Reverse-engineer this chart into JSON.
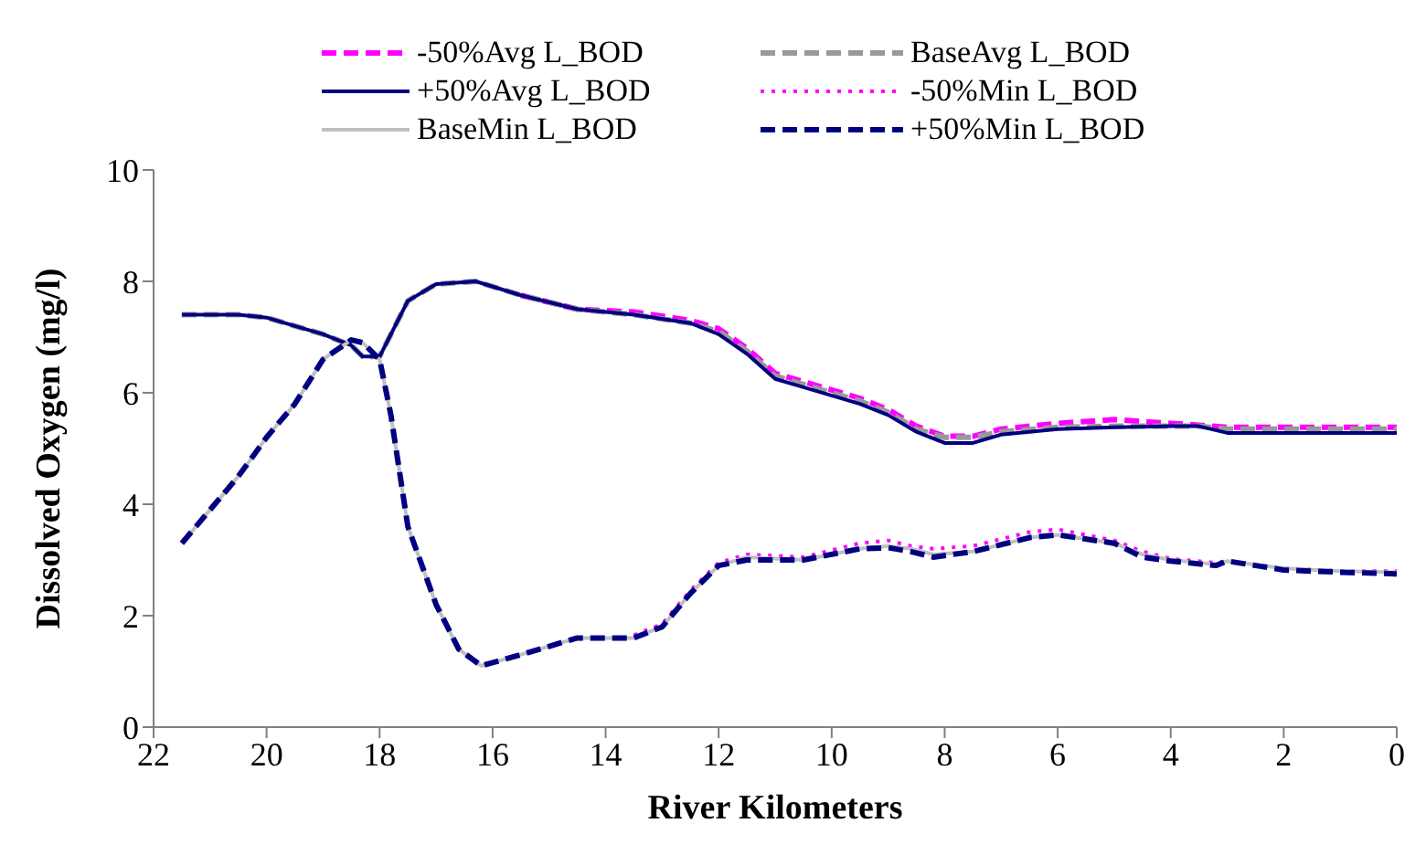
{
  "chart_data": {
    "type": "line",
    "xlabel": "River Kilometers",
    "ylabel": "Dissolved Oxygen (mg/l)",
    "xlim": [
      22,
      0
    ],
    "xticks": [
      22,
      20,
      18,
      16,
      14,
      12,
      10,
      8,
      6,
      4,
      2,
      0
    ],
    "ylim": [
      0,
      10
    ],
    "yticks": [
      0,
      2,
      4,
      6,
      8,
      10
    ],
    "grid": false,
    "legend": "top",
    "marker": "none",
    "series": [
      {
        "name": "-50%Avg L_BOD",
        "color": "#ff00ff",
        "line_style": "dashed",
        "x": [
          15.5,
          14.5,
          13.5,
          12.5,
          12,
          11.5,
          11,
          10.5,
          9.5,
          9,
          8.5,
          8,
          7.5,
          7,
          6,
          5,
          4,
          3.5,
          3,
          2,
          1,
          0
        ],
        "values": [
          7.75,
          7.5,
          7.45,
          7.3,
          7.15,
          6.8,
          6.35,
          6.2,
          5.9,
          5.7,
          5.4,
          5.22,
          5.22,
          5.35,
          5.45,
          5.52,
          5.45,
          5.42,
          5.38,
          5.38,
          5.38,
          5.38
        ]
      },
      {
        "name": "BaseAvg L_BOD",
        "color": "#999999",
        "line_style": "dashed",
        "x": [
          21.5,
          20.5,
          20,
          19.5,
          19,
          18.5,
          18.3,
          18,
          17.5,
          17,
          16.3,
          15.5,
          14.5,
          13.5,
          12.5,
          12,
          11.5,
          11,
          10.5,
          9.5,
          9,
          8.5,
          8,
          7.5,
          7,
          6,
          5,
          4,
          3.5,
          3,
          2,
          1,
          0
        ],
        "values": [
          7.4,
          7.4,
          7.35,
          7.2,
          7.05,
          6.85,
          6.65,
          6.65,
          7.65,
          7.95,
          8.0,
          7.75,
          7.5,
          7.4,
          7.25,
          7.1,
          6.75,
          6.3,
          6.15,
          5.85,
          5.65,
          5.35,
          5.2,
          5.2,
          5.3,
          5.38,
          5.4,
          5.4,
          5.4,
          5.35,
          5.35,
          5.35,
          5.35
        ]
      },
      {
        "name": "+50%Avg L_BOD",
        "color": "#000080",
        "line_style": "solid",
        "x": [
          21.5,
          20.5,
          20,
          19.5,
          19,
          18.5,
          18.3,
          18,
          17.5,
          17,
          16.3,
          15.5,
          14.5,
          13.5,
          12.5,
          12,
          11.5,
          11,
          10.5,
          9.5,
          9,
          8.5,
          8,
          7.5,
          7,
          6,
          5,
          4,
          3.5,
          3,
          2,
          1,
          0
        ],
        "values": [
          7.4,
          7.4,
          7.35,
          7.2,
          7.05,
          6.85,
          6.65,
          6.65,
          7.65,
          7.95,
          8.0,
          7.75,
          7.5,
          7.4,
          7.25,
          7.05,
          6.7,
          6.25,
          6.1,
          5.8,
          5.6,
          5.3,
          5.1,
          5.1,
          5.25,
          5.35,
          5.38,
          5.4,
          5.4,
          5.28,
          5.28,
          5.28,
          5.28
        ]
      },
      {
        "name": "-50%Min L_BOD",
        "color": "#ff00ff",
        "line_style": "dotted",
        "x": [
          13.5,
          13,
          12.5,
          12,
          11.5,
          10.5,
          9.5,
          9,
          8.6,
          8.2,
          7.5,
          6.5,
          6,
          5,
          4.5,
          4,
          3.2,
          3,
          2,
          1,
          0
        ],
        "values": [
          1.65,
          1.85,
          2.45,
          2.95,
          3.1,
          3.05,
          3.3,
          3.35,
          3.25,
          3.2,
          3.25,
          3.5,
          3.55,
          3.35,
          3.15,
          3.02,
          2.95,
          2.98,
          2.85,
          2.8,
          2.8
        ]
      },
      {
        "name": "BaseMin L_BOD",
        "color": "#c0c0c0",
        "line_style": "solid",
        "x": [
          21.5,
          21,
          20.5,
          20,
          19.5,
          19,
          18.5,
          18.3,
          18,
          17.8,
          17.5,
          17,
          16.6,
          16.2,
          15.5,
          14.5,
          13.5,
          13,
          12.5,
          12,
          11.5,
          10.5,
          9.5,
          9,
          8.6,
          8.2,
          7.5,
          6.5,
          6,
          5,
          4.5,
          4,
          3.2,
          3,
          2,
          1,
          0
        ],
        "values": [
          3.3,
          3.9,
          4.5,
          5.2,
          5.8,
          6.6,
          6.95,
          6.9,
          6.6,
          5.6,
          3.6,
          2.2,
          1.4,
          1.1,
          1.3,
          1.6,
          1.6,
          1.8,
          2.4,
          2.9,
          3.05,
          3.0,
          3.2,
          3.25,
          3.2,
          3.1,
          3.15,
          3.4,
          3.45,
          3.3,
          3.1,
          3.0,
          2.92,
          2.98,
          2.85,
          2.8,
          2.78
        ]
      },
      {
        "name": "+50%Min L_BOD",
        "color": "#000080",
        "line_style": "dashed",
        "x": [
          21.5,
          21,
          20.5,
          20,
          19.5,
          19,
          18.5,
          18.3,
          18,
          17.8,
          17.5,
          17,
          16.6,
          16.2,
          15.5,
          14.5,
          13.5,
          13,
          12.5,
          12,
          11.5,
          10.5,
          9.5,
          9,
          8.6,
          8.2,
          7.5,
          6.5,
          6,
          5,
          4.5,
          4,
          3.2,
          3,
          2,
          1,
          0
        ],
        "values": [
          3.3,
          3.9,
          4.5,
          5.2,
          5.8,
          6.6,
          6.95,
          6.9,
          6.6,
          5.6,
          3.6,
          2.2,
          1.4,
          1.1,
          1.3,
          1.6,
          1.6,
          1.8,
          2.4,
          2.9,
          3.0,
          3.0,
          3.2,
          3.22,
          3.15,
          3.05,
          3.15,
          3.4,
          3.45,
          3.3,
          3.05,
          2.98,
          2.9,
          2.98,
          2.82,
          2.78,
          2.75
        ]
      }
    ]
  }
}
